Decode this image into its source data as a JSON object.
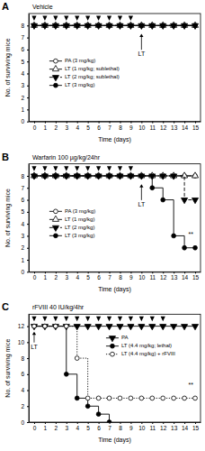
{
  "chart_data": [
    {
      "type": "line",
      "panel_label": "A",
      "title": "Vehicle",
      "x_label": "Time (days)",
      "y_label": "No. of surviving mice",
      "x": [
        0,
        1,
        2,
        3,
        4,
        5,
        6,
        7,
        8,
        9,
        10,
        11,
        12,
        13,
        14,
        15
      ],
      "xlim": [
        -0.5,
        15.5
      ],
      "xticks": [
        0,
        1,
        2,
        3,
        4,
        5,
        6,
        7,
        8,
        9,
        10,
        11,
        12,
        13,
        14,
        15
      ],
      "ylim": [
        0,
        9
      ],
      "yticks": [
        0,
        1,
        2,
        3,
        4,
        5,
        6,
        7,
        8
      ],
      "legend": "left",
      "dose_days": [
        0,
        1,
        2,
        3,
        4,
        5,
        6,
        7,
        8,
        9
      ],
      "series": [
        {
          "name": "PA (3 mg/kg)",
          "color": "#000000",
          "marker": "circle-open",
          "line_style": "solid",
          "values": [
            8,
            8,
            8,
            8,
            8,
            8,
            8,
            8,
            8,
            8,
            8,
            8,
            8,
            8,
            8,
            8
          ]
        },
        {
          "name": "LT (1 mg/kg; sublethal)",
          "color": "#000000",
          "marker": "triangle-up-open",
          "line_style": "dashdot",
          "values": [
            8,
            8,
            8,
            8,
            8,
            8,
            8,
            8,
            8,
            8,
            8,
            8,
            8,
            8,
            8,
            8
          ]
        },
        {
          "name": "LT (2 mg/kg; sublethal)",
          "color": "#000000",
          "marker": "triangle-down",
          "line_style": "dashed",
          "values": [
            8,
            8,
            8,
            8,
            8,
            8,
            8,
            8,
            8,
            8,
            8,
            8,
            8,
            8,
            8,
            8
          ]
        },
        {
          "name": "LT (3 mg/kg)",
          "color": "#000000",
          "marker": "circle",
          "line_style": "solid",
          "values": [
            8,
            8,
            8,
            8,
            8,
            8,
            8,
            8,
            8,
            8,
            8,
            8,
            8,
            8,
            8,
            8
          ]
        }
      ],
      "annotations": [
        {
          "text": "LT",
          "x": 10,
          "y": 5.6,
          "arrow_to": 7.3
        }
      ]
    },
    {
      "type": "line",
      "panel_label": "B",
      "title": "Warfarin 100 µg/kg/24hr",
      "x_label": "Time (days)",
      "y_label": "No. of surviving mice",
      "x": [
        0,
        1,
        2,
        3,
        4,
        5,
        6,
        7,
        8,
        9,
        10,
        11,
        12,
        13,
        14,
        15
      ],
      "xlim": [
        -0.5,
        15.5
      ],
      "xticks": [
        0,
        1,
        2,
        3,
        4,
        5,
        6,
        7,
        8,
        9,
        10,
        11,
        12,
        13,
        14,
        15
      ],
      "ylim": [
        0,
        9
      ],
      "yticks": [
        0,
        1,
        2,
        3,
        4,
        5,
        6,
        7,
        8
      ],
      "legend": "left",
      "dose_days": [
        0,
        1,
        2,
        3,
        4,
        5,
        6,
        7,
        8,
        9
      ],
      "series": [
        {
          "name": "PA (3 mg/kg)",
          "color": "#000000",
          "marker": "circle-open",
          "line_style": "solid",
          "values": [
            8,
            8,
            8,
            8,
            8,
            8,
            8,
            8,
            8,
            8,
            8,
            8,
            8,
            8,
            8,
            8
          ]
        },
        {
          "name": "LT (1 mg/kg)",
          "color": "#000000",
          "marker": "triangle-up-open",
          "line_style": "dashdot",
          "values": [
            8,
            8,
            8,
            8,
            8,
            8,
            8,
            8,
            8,
            8,
            8,
            8,
            8,
            8,
            8,
            8
          ]
        },
        {
          "name": "LT (2 mg/kg)",
          "color": "#000000",
          "marker": "triangle-down",
          "line_style": "dashed",
          "values": [
            8,
            8,
            8,
            8,
            8,
            8,
            8,
            8,
            8,
            8,
            8,
            8,
            8,
            8,
            6,
            6
          ]
        },
        {
          "name": "LT (3 mg/kg)",
          "color": "#000000",
          "marker": "circle",
          "line_style": "solid",
          "values": [
            8,
            8,
            8,
            8,
            8,
            8,
            8,
            8,
            8,
            8,
            8,
            7,
            6,
            3,
            2,
            2
          ]
        }
      ],
      "annotations": [
        {
          "text": "LT",
          "x": 10,
          "y": 5.6,
          "arrow_to": 7.3
        },
        {
          "text": "**",
          "x": 14.6,
          "y": 3.1
        }
      ]
    },
    {
      "type": "line",
      "panel_label": "C",
      "title": "rFVIII 40 IU/kg/4hr",
      "x_label": "Time (days)",
      "y_label": "No. of surviving mice",
      "x": [
        0,
        1,
        2,
        3,
        4,
        5,
        6,
        7,
        8,
        9,
        10,
        11,
        12,
        13,
        14,
        15
      ],
      "xlim": [
        -0.5,
        15.5
      ],
      "xticks": [
        0,
        1,
        2,
        3,
        4,
        5,
        6,
        7,
        8,
        9,
        10,
        11,
        12,
        13,
        14,
        15
      ],
      "ylim": [
        0,
        13.5
      ],
      "yticks": [
        0,
        2,
        4,
        6,
        8,
        10,
        12
      ],
      "legend": "right",
      "dose_days": [
        0,
        1,
        2,
        3,
        4,
        5,
        6,
        7,
        8,
        9,
        10,
        11,
        12
      ],
      "series": [
        {
          "name": "PA",
          "color": "#000000",
          "marker": "triangle-down",
          "line_style": "solid",
          "values": [
            12,
            12,
            12,
            12,
            12,
            12,
            12,
            12,
            12,
            12,
            12,
            12,
            12,
            12,
            12,
            12
          ]
        },
        {
          "name": "LT (4.4 mg/kg; lethal)",
          "color": "#000000",
          "marker": "circle",
          "line_style": "solid",
          "values": [
            12,
            12,
            12,
            6,
            3,
            2,
            1,
            0,
            null,
            null,
            null,
            null,
            null,
            null,
            null,
            null
          ]
        },
        {
          "name": "LT (4.4 mg/kg) + rFVIII",
          "color": "#000000",
          "marker": "circle-open",
          "line_style": "dotted",
          "values": [
            12,
            12,
            12,
            12,
            8,
            3,
            3,
            3,
            3,
            3,
            3,
            3,
            3,
            3,
            3,
            3
          ]
        }
      ],
      "annotations": [
        {
          "text": "LT",
          "x": 0,
          "y": 9.4,
          "arrow_to": 11.3
        },
        {
          "text": "**",
          "x": 14.6,
          "y": 4.6
        }
      ]
    }
  ]
}
